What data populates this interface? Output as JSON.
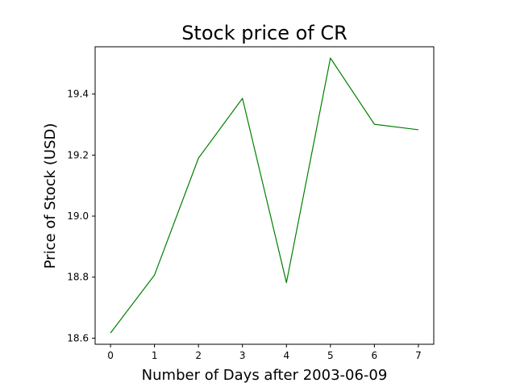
{
  "chart_data": {
    "type": "line",
    "title": "Stock price of CR",
    "xlabel": "Number of Days after 2003-06-09",
    "ylabel": "Price of Stock (USD)",
    "x": [
      0,
      1,
      2,
      3,
      4,
      5,
      6,
      7
    ],
    "series": [
      {
        "values": [
          18.617,
          18.807,
          19.19,
          19.386,
          18.782,
          19.518,
          19.301,
          19.283
        ],
        "color": "#008000"
      }
    ],
    "xlim": [
      -0.35,
      7.35
    ],
    "ylim": [
      18.58,
      19.555
    ],
    "xticks": [
      "0",
      "1",
      "2",
      "3",
      "4",
      "5",
      "6",
      "7"
    ],
    "yticks": [
      "18.6",
      "18.8",
      "19.0",
      "19.2",
      "19.4"
    ],
    "ytick_values": [
      18.6,
      18.8,
      19.0,
      19.2,
      19.4
    ],
    "grid": false,
    "legend": false
  }
}
